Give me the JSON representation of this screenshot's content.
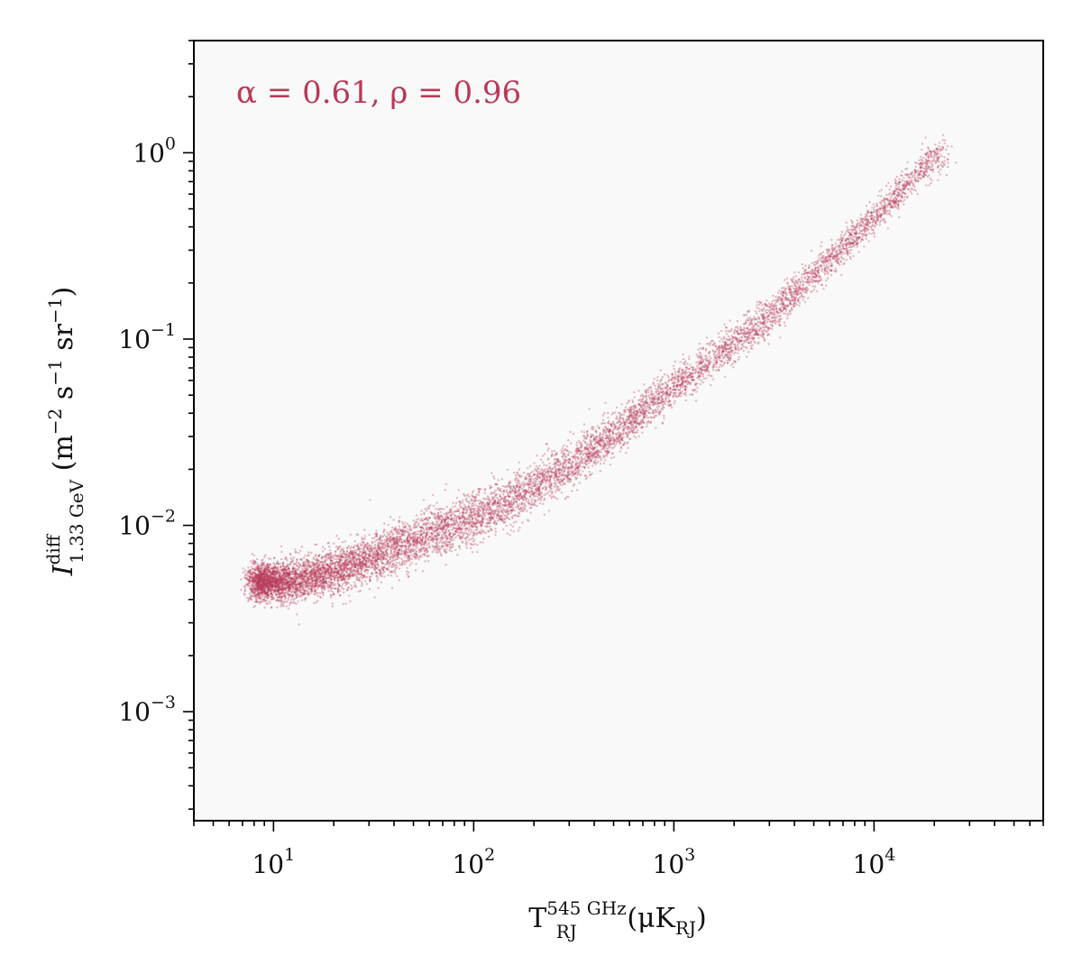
{
  "chart_data": {
    "type": "scatter",
    "title": "",
    "xscale": "log",
    "yscale": "log",
    "xlim": [
      4,
      70000
    ],
    "ylim": [
      0.00026,
      4.0
    ],
    "xlabel": {
      "base": "T",
      "sup": "545 GHz",
      "sub": "RJ",
      "unit_open": " (μK",
      "unit_sub": "RJ",
      "unit_close": ")"
    },
    "ylabel": {
      "base": "I",
      "sup": "diff",
      "sub": "1.33 GeV",
      "unit_open": " (m",
      "exp1": "−2",
      "mid": " s",
      "exp2": "−1",
      "mid2": " sr",
      "exp3": "−1",
      "unit_close": ")"
    },
    "xticks": [
      {
        "value": 10,
        "base": "10",
        "exp": "1"
      },
      {
        "value": 100,
        "base": "10",
        "exp": "2"
      },
      {
        "value": 1000,
        "base": "10",
        "exp": "3"
      },
      {
        "value": 10000,
        "base": "10",
        "exp": "4"
      }
    ],
    "yticks": [
      {
        "value": 0.001,
        "base": "10",
        "exp": "−3"
      },
      {
        "value": 0.01,
        "base": "10",
        "exp": "−2"
      },
      {
        "value": 0.1,
        "base": "10",
        "exp": "−1"
      },
      {
        "value": 1,
        "base": "10",
        "exp": "0"
      }
    ],
    "annotation": "α = 0.61, ρ = 0.96",
    "grid": false,
    "colors": {
      "points": "#b83a58",
      "plot_background": "#f9f9f9",
      "annotation": "#b83a58"
    },
    "series": [
      {
        "x": [
          10,
          12,
          15,
          20,
          30,
          40,
          50,
          70,
          100,
          150,
          200,
          300,
          500,
          700,
          1000,
          1500,
          2000,
          3000,
          5000,
          10000,
          20000
        ],
        "y": [
          0.005,
          0.005,
          0.0053,
          0.0057,
          0.0066,
          0.0074,
          0.0082,
          0.0095,
          0.011,
          0.0135,
          0.016,
          0.021,
          0.031,
          0.041,
          0.055,
          0.075,
          0.095,
          0.13,
          0.22,
          0.45,
          0.95
        ],
        "scatter_dex": [
          0.09,
          0.1,
          0.1,
          0.11,
          0.11,
          0.12,
          0.12,
          0.12,
          0.12,
          0.12,
          0.11,
          0.11,
          0.1,
          0.1,
          0.09,
          0.09,
          0.09,
          0.09,
          0.09,
          0.08,
          0.08
        ]
      }
    ]
  }
}
